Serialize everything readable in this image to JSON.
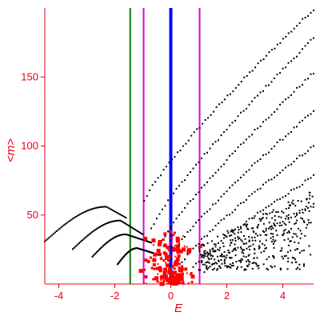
{
  "chart_data": {
    "type": "scatter",
    "title": "",
    "xlabel": "E",
    "ylabel": "<m>",
    "xlim": [
      -4.5,
      5.1
    ],
    "ylim": [
      0,
      200
    ],
    "xticks": [
      -4,
      -2,
      0,
      2,
      4
    ],
    "yticks": [
      50,
      100,
      150
    ],
    "axis_color": "#e8001c",
    "grid": false,
    "vertical_lines": [
      {
        "x": -1.45,
        "color": "#0a7a0a"
      },
      {
        "x": -0.97,
        "color": "#e000e0"
      },
      {
        "x": 0.0,
        "color": "#0000ff"
      },
      {
        "x": 1.03,
        "color": "#e000e0"
      }
    ],
    "series": [
      {
        "color": "#000000",
        "marker": "dot",
        "curves": [
          {
            "x_start": -4.5,
            "x_peak": -2.3,
            "y_peak": 56,
            "x_end": -1.6,
            "y_end": 48
          },
          {
            "x_start": -3.5,
            "x_peak": -1.8,
            "y_peak": 46,
            "x_end": -1.0,
            "y_end": 36
          },
          {
            "x_start": -2.8,
            "x_peak": -1.6,
            "y_peak": 36,
            "x_end": -0.7,
            "y_end": 30
          },
          {
            "x_start": -1.9,
            "x_peak": -1.2,
            "y_peak": 26,
            "x_end": -0.4,
            "y_end": 21
          }
        ],
        "fans": [
          {
            "x_start": -0.95,
            "y_start": 60,
            "x_end": 5.1,
            "y_end": 199
          },
          {
            "x_start": -0.7,
            "y_start": 40,
            "x_end": 5.1,
            "y_end": 178
          },
          {
            "x_start": -0.4,
            "y_start": 28,
            "x_end": 5.1,
            "y_end": 153
          },
          {
            "x_start": 0.0,
            "y_start": 20,
            "x_end": 5.1,
            "y_end": 125
          },
          {
            "x_start": 0.4,
            "y_start": 15,
            "x_end": 5.1,
            "y_end": 100
          },
          {
            "x_start": 0.8,
            "y_start": 12,
            "x_end": 5.1,
            "y_end": 78
          },
          {
            "x_start": 1.2,
            "y_start": 8,
            "x_end": 5.1,
            "y_end": 58
          }
        ],
        "cloud": {
          "x_range": [
            1.0,
            5.1
          ],
          "y_range": [
            10,
            70
          ],
          "count": 380
        }
      },
      {
        "color": "#ff0000",
        "marker": "square",
        "cluster": {
          "x_center": 0.0,
          "x_spread": 1.3,
          "y_range": [
            0,
            38
          ],
          "count": 150
        },
        "large_points": [
          {
            "x": 0.22,
            "y": 3
          },
          {
            "x": 0.32,
            "y": 5
          },
          {
            "x": 0.12,
            "y": 2
          }
        ]
      }
    ]
  }
}
